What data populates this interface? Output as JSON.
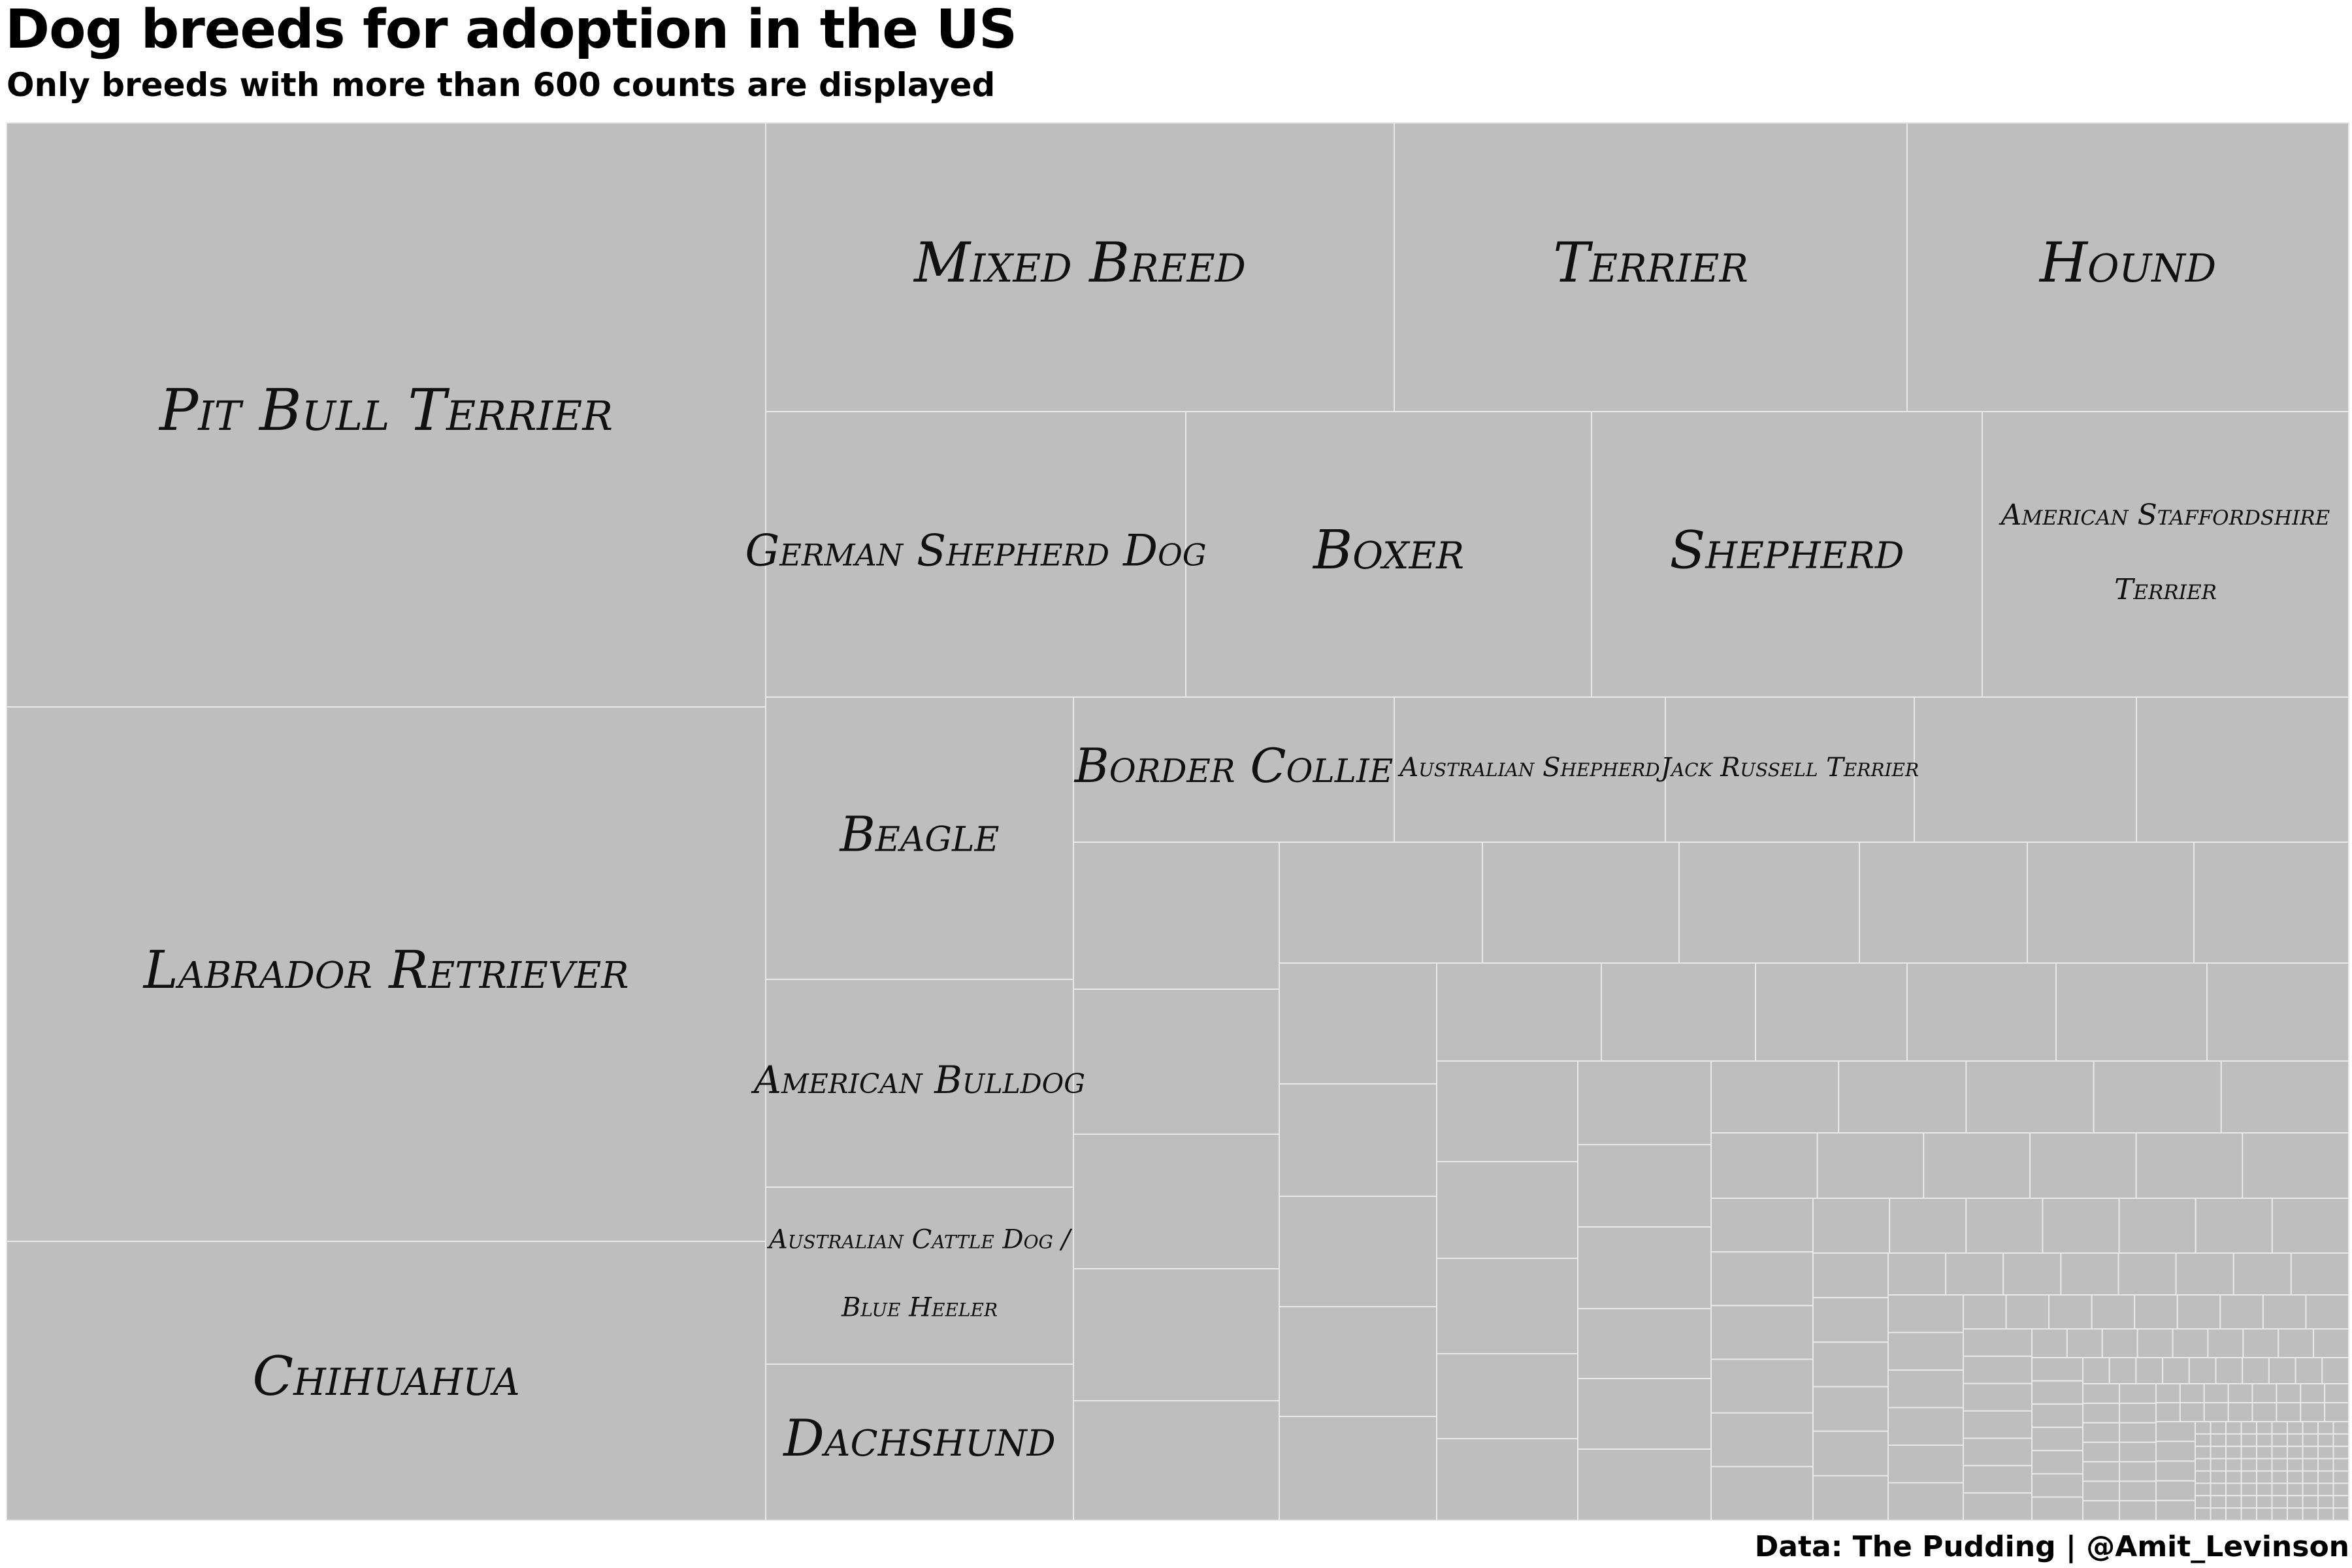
{
  "chart_data": {
    "type": "treemap",
    "title": "Dog breeds for adoption in the US",
    "subtitle": "Only breeds with more than 600 counts are displayed",
    "caption": "Data: The Pudding | @Amit_Levinson",
    "tile_color": "#bebebe",
    "border_color": "#e8e8e8",
    "labeled_breeds": [
      "Pit Bull Terrier",
      "Labrador Retriever",
      "Chihuahua",
      "Mixed Breed",
      "Terrier",
      "Hound",
      "German Shepherd Dog",
      "Boxer",
      "Shepherd",
      [
        "American Staffordshire",
        "Terrier"
      ],
      "Beagle",
      "Border Collie",
      "Australian Shepherd",
      "Jack Russell Terrier",
      "American Bulldog",
      [
        "Australian Cattle Dog /",
        "Blue Heeler"
      ],
      "Dachshund"
    ],
    "values": null
  }
}
